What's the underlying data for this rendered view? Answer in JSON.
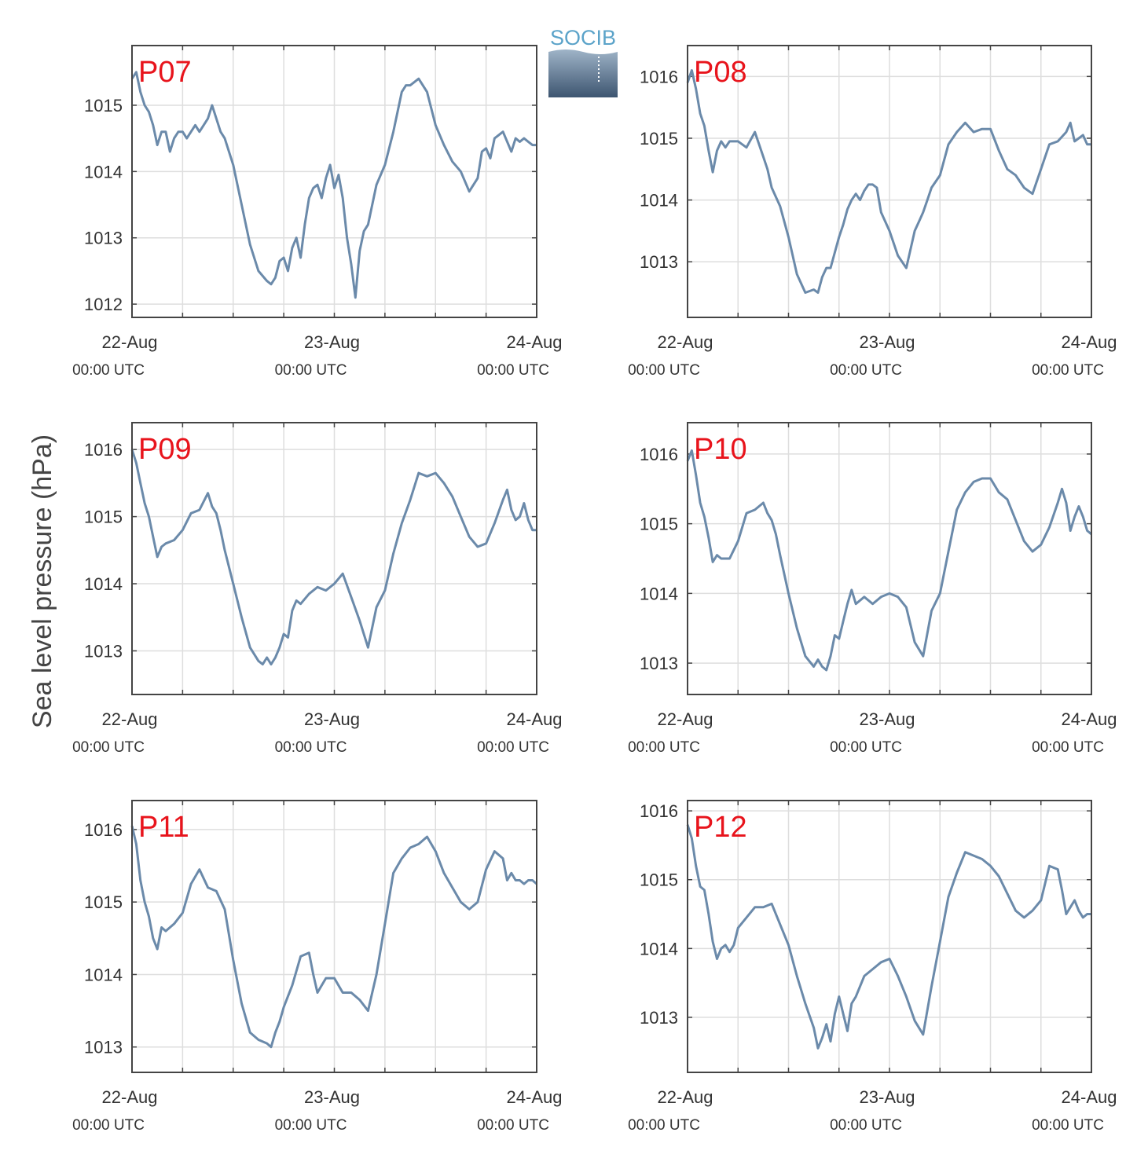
{
  "figure": {
    "ylabel": "Sea level pressure (hPa)",
    "logo_text": "SOCIB",
    "colors": {
      "line": "#6b8aaa",
      "title": "#e8141c",
      "grid": "#dedede",
      "axis": "#444444",
      "logo_text": "#5ba3c9"
    }
  },
  "chart_data": [
    {
      "type": "line",
      "title": "P07",
      "xlim": [
        0,
        48
      ],
      "ylim": [
        1011.8,
        1015.9
      ],
      "xticks": [
        0,
        24,
        48
      ],
      "xtick_labels": [
        "22-Aug",
        "23-Aug",
        "24-Aug"
      ],
      "xtick_sublabels": [
        "00:00 UTC",
        "00:00 UTC",
        "00:00 UTC"
      ],
      "yticks": [
        1012,
        1013,
        1014,
        1015
      ],
      "x_hours": [
        0,
        0.5,
        1,
        1.5,
        2,
        2.5,
        3,
        3.5,
        4,
        4.5,
        5,
        5.5,
        6,
        6.5,
        7,
        7.5,
        8,
        8.5,
        9,
        9.5,
        10,
        10.5,
        11,
        12,
        13,
        14,
        15,
        16,
        16.5,
        17,
        17.5,
        18,
        18.5,
        19,
        19.5,
        20,
        20.5,
        21,
        21.5,
        22,
        22.5,
        23,
        23.5,
        24,
        24.5,
        25,
        25.5,
        26,
        26.5,
        27,
        27.5,
        28,
        29,
        30,
        31,
        32,
        32.5,
        33,
        34,
        35,
        36,
        37,
        38,
        39,
        40,
        41,
        41.5,
        42,
        42.5,
        43,
        44,
        45,
        45.5,
        46,
        46.5,
        47,
        47.5,
        48
      ],
      "y": [
        1015.4,
        1015.5,
        1015.2,
        1015.0,
        1014.9,
        1014.7,
        1014.4,
        1014.6,
        1014.6,
        1014.3,
        1014.5,
        1014.6,
        1014.6,
        1014.5,
        1014.6,
        1014.7,
        1014.6,
        1014.7,
        1014.8,
        1015.0,
        1014.8,
        1014.6,
        1014.5,
        1014.1,
        1013.5,
        1012.9,
        1012.5,
        1012.35,
        1012.3,
        1012.4,
        1012.65,
        1012.7,
        1012.5,
        1012.85,
        1013.0,
        1012.7,
        1013.2,
        1013.6,
        1013.75,
        1013.8,
        1013.6,
        1013.9,
        1014.1,
        1013.75,
        1013.95,
        1013.6,
        1013.0,
        1012.6,
        1012.1,
        1012.8,
        1013.1,
        1013.2,
        1013.8,
        1014.1,
        1014.6,
        1015.2,
        1015.3,
        1015.3,
        1015.4,
        1015.2,
        1014.7,
        1014.4,
        1014.15,
        1014.0,
        1013.7,
        1013.9,
        1014.3,
        1014.35,
        1014.2,
        1014.5,
        1014.6,
        1014.3,
        1014.5,
        1014.45,
        1014.5,
        1014.45,
        1014.4,
        1014.4
      ]
    },
    {
      "type": "line",
      "title": "P08",
      "xlim": [
        0,
        48
      ],
      "ylim": [
        1012.1,
        1016.5
      ],
      "xticks": [
        0,
        24,
        48
      ],
      "xtick_labels": [
        "22-Aug",
        "23-Aug",
        "24-Aug"
      ],
      "xtick_sublabels": [
        "00:00 UTC",
        "00:00 UTC",
        "00:00 UTC"
      ],
      "yticks": [
        1013,
        1014,
        1015,
        1016
      ],
      "x_hours": [
        0,
        0.5,
        1,
        1.5,
        2,
        2.5,
        3,
        3.5,
        4,
        4.5,
        5,
        6,
        7,
        8,
        9,
        9.5,
        10,
        11,
        12,
        13,
        14,
        15,
        15.5,
        16,
        16.5,
        17,
        17.5,
        18,
        18.5,
        19,
        19.5,
        20,
        20.5,
        21,
        21.5,
        22,
        22.5,
        23,
        24,
        25,
        26,
        27,
        27.5,
        28,
        28.5,
        29,
        30,
        31,
        32,
        33,
        34,
        35,
        36,
        37,
        38,
        39,
        40,
        41,
        42,
        43,
        44,
        45,
        45.5,
        46,
        46.5,
        47,
        47.5,
        48
      ],
      "y": [
        1015.9,
        1016.1,
        1015.8,
        1015.4,
        1015.2,
        1014.8,
        1014.45,
        1014.8,
        1014.95,
        1014.85,
        1014.95,
        1014.95,
        1014.85,
        1015.1,
        1014.7,
        1014.5,
        1014.2,
        1013.9,
        1013.4,
        1012.8,
        1012.5,
        1012.55,
        1012.5,
        1012.75,
        1012.9,
        1012.9,
        1013.15,
        1013.4,
        1013.6,
        1013.85,
        1014.0,
        1014.1,
        1014.0,
        1014.15,
        1014.25,
        1014.25,
        1014.2,
        1013.8,
        1013.5,
        1013.1,
        1012.9,
        1013.5,
        1013.65,
        1013.8,
        1014.0,
        1014.2,
        1014.4,
        1014.9,
        1015.1,
        1015.25,
        1015.1,
        1015.15,
        1015.15,
        1014.8,
        1014.5,
        1014.4,
        1014.2,
        1014.1,
        1014.5,
        1014.9,
        1014.95,
        1015.1,
        1015.25,
        1014.95,
        1015.0,
        1015.05,
        1014.9,
        1014.9
      ]
    },
    {
      "type": "line",
      "title": "P09",
      "xlim": [
        0,
        48
      ],
      "ylim": [
        1012.35,
        1016.4
      ],
      "xticks": [
        0,
        24,
        48
      ],
      "xtick_labels": [
        "22-Aug",
        "23-Aug",
        "24-Aug"
      ],
      "xtick_sublabels": [
        "00:00 UTC",
        "00:00 UTC",
        "00:00 UTC"
      ],
      "yticks": [
        1013,
        1014,
        1015,
        1016
      ],
      "x_hours": [
        0,
        0.5,
        1,
        1.5,
        2,
        2.5,
        3,
        3.5,
        4,
        5,
        6,
        7,
        8,
        9,
        9.5,
        10,
        10.5,
        11,
        12,
        13,
        14,
        15,
        15.5,
        16,
        16.5,
        17,
        17.5,
        18,
        18.5,
        19,
        19.5,
        20,
        21,
        22,
        23,
        24,
        25,
        26,
        27,
        28,
        29,
        30,
        31,
        32,
        33,
        34,
        35,
        36,
        37,
        38,
        39,
        40,
        41,
        42,
        43,
        44,
        44.5,
        45,
        45.5,
        46,
        46.5,
        47,
        47.5,
        48
      ],
      "y": [
        1016.0,
        1015.8,
        1015.5,
        1015.2,
        1015.0,
        1014.7,
        1014.4,
        1014.55,
        1014.6,
        1014.65,
        1014.8,
        1015.05,
        1015.1,
        1015.35,
        1015.15,
        1015.05,
        1014.8,
        1014.5,
        1014.0,
        1013.5,
        1013.05,
        1012.85,
        1012.8,
        1012.9,
        1012.8,
        1012.9,
        1013.05,
        1013.25,
        1013.2,
        1013.6,
        1013.75,
        1013.7,
        1013.85,
        1013.95,
        1013.9,
        1014.0,
        1014.15,
        1013.8,
        1013.45,
        1013.05,
        1013.65,
        1013.9,
        1014.45,
        1014.9,
        1015.25,
        1015.65,
        1015.6,
        1015.65,
        1015.5,
        1015.3,
        1015.0,
        1014.7,
        1014.55,
        1014.6,
        1014.9,
        1015.25,
        1015.4,
        1015.1,
        1014.95,
        1015.0,
        1015.2,
        1014.95,
        1014.8,
        1014.8
      ]
    },
    {
      "type": "line",
      "title": "P10",
      "xlim": [
        0,
        48
      ],
      "ylim": [
        1012.55,
        1016.45
      ],
      "xticks": [
        0,
        24,
        48
      ],
      "xtick_labels": [
        "22-Aug",
        "23-Aug",
        "24-Aug"
      ],
      "xtick_sublabels": [
        "00:00 UTC",
        "00:00 UTC",
        "00:00 UTC"
      ],
      "yticks": [
        1013,
        1014,
        1015,
        1016
      ],
      "x_hours": [
        0,
        0.5,
        1,
        1.5,
        2,
        2.5,
        3,
        3.5,
        4,
        5,
        6,
        7,
        8,
        9,
        9.5,
        10,
        10.5,
        11,
        12,
        13,
        14,
        15,
        15.5,
        16,
        16.5,
        17,
        17.5,
        18,
        18.5,
        19,
        19.5,
        20,
        21,
        22,
        23,
        24,
        25,
        26,
        27,
        28,
        29,
        30,
        31,
        32,
        33,
        34,
        35,
        36,
        37,
        38,
        39,
        40,
        41,
        42,
        43,
        44,
        44.5,
        45,
        45.5,
        46,
        46.5,
        47,
        47.5,
        48
      ],
      "y": [
        1015.9,
        1016.05,
        1015.7,
        1015.3,
        1015.1,
        1014.8,
        1014.45,
        1014.55,
        1014.5,
        1014.5,
        1014.75,
        1015.15,
        1015.2,
        1015.3,
        1015.15,
        1015.05,
        1014.85,
        1014.55,
        1014.0,
        1013.5,
        1013.1,
        1012.95,
        1013.05,
        1012.95,
        1012.9,
        1013.1,
        1013.4,
        1013.35,
        1013.6,
        1013.85,
        1014.05,
        1013.85,
        1013.95,
        1013.85,
        1013.95,
        1014.0,
        1013.95,
        1013.8,
        1013.3,
        1013.1,
        1013.75,
        1014.0,
        1014.6,
        1015.2,
        1015.45,
        1015.6,
        1015.65,
        1015.65,
        1015.45,
        1015.35,
        1015.05,
        1014.75,
        1014.6,
        1014.7,
        1014.95,
        1015.3,
        1015.5,
        1015.3,
        1014.9,
        1015.1,
        1015.25,
        1015.1,
        1014.9,
        1014.85
      ]
    },
    {
      "type": "line",
      "title": "P11",
      "xlim": [
        0,
        48
      ],
      "ylim": [
        1012.65,
        1016.4
      ],
      "xticks": [
        0,
        24,
        48
      ],
      "xtick_labels": [
        "22-Aug",
        "23-Aug",
        "24-Aug"
      ],
      "xtick_sublabels": [
        "00:00 UTC",
        "00:00 UTC",
        "00:00 UTC"
      ],
      "yticks": [
        1013,
        1014,
        1015,
        1016
      ],
      "x_hours": [
        0,
        0.5,
        1,
        1.5,
        2,
        2.5,
        3,
        3.5,
        4,
        5,
        6,
        7,
        8,
        9,
        10,
        11,
        12,
        13,
        14,
        15,
        16,
        16.5,
        17,
        17.5,
        18,
        18.5,
        19,
        20,
        21,
        21.5,
        22,
        22.5,
        23,
        24,
        25,
        26,
        27,
        28,
        29,
        30,
        31,
        32,
        33,
        34,
        35,
        36,
        37,
        38,
        39,
        40,
        41,
        42,
        43,
        44,
        44.5,
        45,
        45.5,
        46,
        46.5,
        47,
        47.5,
        48
      ],
      "y": [
        1016.05,
        1015.8,
        1015.3,
        1015.0,
        1014.8,
        1014.5,
        1014.35,
        1014.65,
        1014.6,
        1014.7,
        1014.85,
        1015.25,
        1015.45,
        1015.2,
        1015.15,
        1014.9,
        1014.2,
        1013.6,
        1013.2,
        1013.1,
        1013.05,
        1013.0,
        1013.2,
        1013.35,
        1013.55,
        1013.7,
        1013.85,
        1014.25,
        1014.3,
        1014.0,
        1013.75,
        1013.85,
        1013.95,
        1013.95,
        1013.75,
        1013.75,
        1013.65,
        1013.5,
        1014.0,
        1014.7,
        1015.4,
        1015.6,
        1015.75,
        1015.8,
        1015.9,
        1015.7,
        1015.4,
        1015.2,
        1015.0,
        1014.9,
        1015.0,
        1015.45,
        1015.7,
        1015.6,
        1015.3,
        1015.4,
        1015.3,
        1015.3,
        1015.25,
        1015.3,
        1015.3,
        1015.25
      ]
    },
    {
      "type": "line",
      "title": "P12",
      "xlim": [
        0,
        48
      ],
      "ylim": [
        1012.2,
        1016.15
      ],
      "xticks": [
        0,
        24,
        48
      ],
      "xtick_labels": [
        "22-Aug",
        "23-Aug",
        "24-Aug"
      ],
      "xtick_sublabels": [
        "00:00 UTC",
        "00:00 UTC",
        "00:00 UTC"
      ],
      "yticks": [
        1013,
        1014,
        1015,
        1016
      ],
      "x_hours": [
        0,
        0.5,
        1,
        1.5,
        2,
        2.5,
        3,
        3.5,
        4,
        4.5,
        5,
        5.5,
        6,
        7,
        8,
        9,
        10,
        11,
        12,
        13,
        14,
        15,
        15.5,
        16,
        16.5,
        17,
        17.5,
        18,
        18.5,
        19,
        19.5,
        20,
        21,
        22,
        23,
        24,
        25,
        26,
        27,
        28,
        29,
        30,
        31,
        32,
        33,
        34,
        35,
        36,
        37,
        38,
        39,
        40,
        41,
        42,
        43,
        44,
        44.5,
        45,
        45.5,
        46,
        46.5,
        47,
        47.5,
        48
      ],
      "y": [
        1015.8,
        1015.6,
        1015.2,
        1014.9,
        1014.85,
        1014.5,
        1014.1,
        1013.85,
        1014.0,
        1014.05,
        1013.95,
        1014.05,
        1014.3,
        1014.45,
        1014.6,
        1014.6,
        1014.65,
        1014.35,
        1014.05,
        1013.6,
        1013.2,
        1012.85,
        1012.55,
        1012.7,
        1012.9,
        1012.65,
        1013.05,
        1013.3,
        1013.05,
        1012.8,
        1013.2,
        1013.3,
        1013.6,
        1013.7,
        1013.8,
        1013.85,
        1013.6,
        1013.3,
        1012.95,
        1012.75,
        1013.45,
        1014.1,
        1014.75,
        1015.1,
        1015.4,
        1015.35,
        1015.3,
        1015.2,
        1015.05,
        1014.8,
        1014.55,
        1014.45,
        1014.55,
        1014.7,
        1015.2,
        1015.15,
        1014.85,
        1014.5,
        1014.6,
        1014.7,
        1014.55,
        1014.45,
        1014.5,
        1014.5
      ]
    }
  ]
}
